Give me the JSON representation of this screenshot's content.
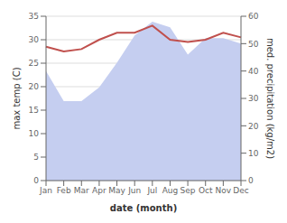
{
  "chart_data": {
    "type": "line",
    "categories": [
      "Jan",
      "Feb",
      "Mar",
      "Apr",
      "May",
      "Jun",
      "Jul",
      "Aug",
      "Sep",
      "Oct",
      "Nov",
      "Dec"
    ],
    "series": [
      {
        "name": "med. precipitation (kg/m2)",
        "type": "area",
        "axis": "y2",
        "color": "#c5cef0",
        "values": [
          40,
          29,
          29,
          34,
          43,
          53,
          58,
          56,
          46,
          52,
          52,
          50
        ]
      },
      {
        "name": "max temp (C)",
        "type": "line",
        "axis": "y",
        "color": "#c0504d",
        "values": [
          28.5,
          27.5,
          28.0,
          30.0,
          31.5,
          31.5,
          33.0,
          30.0,
          29.5,
          30.0,
          31.5,
          30.5
        ]
      }
    ],
    "xlabel": "date (month)",
    "ylabel": "max temp (C)",
    "y2label": "med. precipitation (kg/m2)",
    "ylim": [
      0,
      35
    ],
    "yticks": [
      0,
      5,
      10,
      15,
      20,
      25,
      30,
      35
    ],
    "y2lim": [
      0,
      60
    ],
    "y2ticks": [
      0,
      10,
      20,
      30,
      40,
      50,
      60
    ],
    "grid": true
  }
}
